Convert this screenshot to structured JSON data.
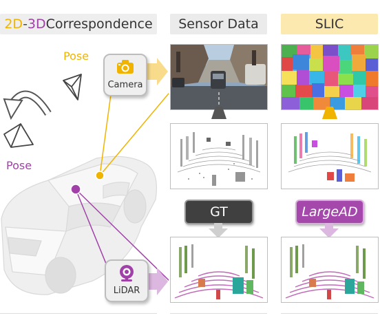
{
  "headers": {
    "correspondence_2d": "2D",
    "correspondence_dash": "-",
    "correspondence_3d": "3D",
    "correspondence_rest": " Correspondence",
    "sensor_data": "Sensor Data",
    "slic": "SLIC"
  },
  "labels": {
    "pose_camera": "Pose",
    "pose_lidar": "Pose",
    "camera": "Camera",
    "lidar": "LiDAR",
    "gt": "GT",
    "largead": "LargeAD"
  },
  "colors": {
    "orange": "#f0b400",
    "purple": "#a040a8",
    "header_bg_gray": "#ebebeb",
    "header_bg_left": "#eeeeee",
    "header_bg_slic": "#fbe9b0",
    "gt_pill": "#404040",
    "largead_pill": "#a448ac",
    "arrow_gray": "#cfcfcf",
    "arrow_pink": "#dcb8e0",
    "arrow_yellow": "#f8dc8c"
  },
  "icons": {
    "camera": "camera-icon",
    "lidar": "webcam-icon",
    "pose": "pyramid-frustum-icon"
  }
}
